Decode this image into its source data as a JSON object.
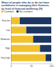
{
  "chart_data": {
    "type": "bar",
    "orientation": "horizontal",
    "stacked": true,
    "title": "Share of people who do or do not have confidence in managing their finances, by level of financial wellbeing (%)",
    "categories": [
      "Very low",
      "Low",
      "Moderate",
      "High",
      "Very high"
    ],
    "series": [
      {
        "name": "Confident",
        "color": "#f2c12e",
        "values": [
          22,
          38,
          55,
          72,
          86
        ]
      },
      {
        "name": "Not confident",
        "color": "#1d3763",
        "values": [
          78,
          62,
          45,
          28,
          14
        ]
      }
    ],
    "xlim": [
      0,
      100
    ],
    "xticks": [
      0,
      50,
      100
    ],
    "legend": "top"
  }
}
